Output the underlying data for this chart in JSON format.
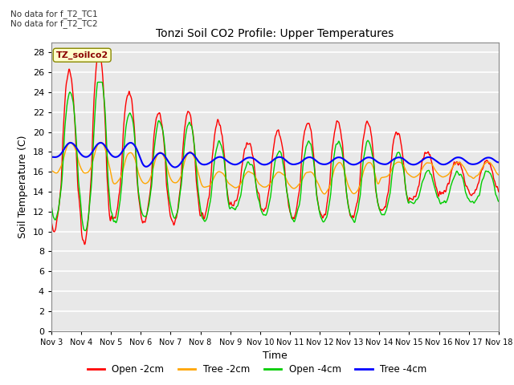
{
  "title": "Tonzi Soil CO2 Profile: Upper Temperatures",
  "xlabel": "Time",
  "ylabel": "Soil Temperature (C)",
  "ylim": [
    0,
    29
  ],
  "yticks": [
    0,
    2,
    4,
    6,
    8,
    10,
    12,
    14,
    16,
    18,
    20,
    22,
    24,
    26,
    28
  ],
  "annotation_text": "No data for f_T2_TC1\nNo data for f_T2_TC2",
  "legend_label": "TZ_soilco2",
  "series_labels": [
    "Open -2cm",
    "Tree -2cm",
    "Open -4cm",
    "Tree -4cm"
  ],
  "series_colors": [
    "#ff0000",
    "#ffa500",
    "#00cc00",
    "#0000ff"
  ],
  "series_linewidths": [
    1.0,
    1.0,
    1.0,
    1.5
  ],
  "xtick_labels": [
    "Nov 3",
    "Nov 4",
    "Nov 5",
    "Nov 6",
    "Nov 7",
    "Nov 8",
    "Nov 9",
    "Nov 10",
    "Nov 11",
    "Nov 12",
    "Nov 13",
    "Nov 14",
    "Nov 15",
    "Nov 16",
    "Nov 17",
    "Nov 18"
  ],
  "background_color": "#ffffff",
  "plot_bg_color": "#e8e8e8",
  "grid_color": "#ffffff"
}
